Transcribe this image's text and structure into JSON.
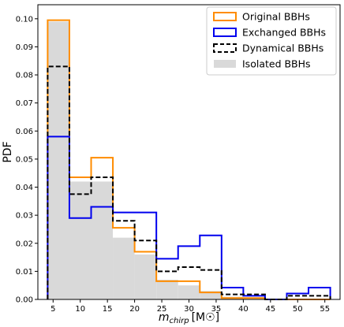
{
  "chart_data": {
    "type": "histogram",
    "xlabel_main": "m",
    "xlabel_sub": "chirp",
    "xlabel_unit": "[M☉]",
    "ylabel": "PDF",
    "xlim": [
      2.2,
      57.8
    ],
    "ylim": [
      0,
      0.105
    ],
    "xticks": [
      5,
      10,
      15,
      20,
      25,
      30,
      35,
      40,
      45,
      50,
      55
    ],
    "yticks": [
      0.0,
      0.01,
      0.02,
      0.03,
      0.04,
      0.05,
      0.06,
      0.07,
      0.08,
      0.09,
      0.1
    ],
    "ytick_labels": [
      "0.00",
      "0.01",
      "0.02",
      "0.03",
      "0.04",
      "0.05",
      "0.06",
      "0.07",
      "0.08",
      "0.09",
      "0.10"
    ],
    "bin_edges": [
      4,
      8,
      12,
      16,
      20,
      24,
      28,
      32,
      36,
      40,
      44,
      48,
      52,
      56
    ],
    "series": [
      {
        "name": "Isolated BBHs",
        "style": "filled",
        "color": "#d9d9d9",
        "values": [
          0.099,
          0.042,
          0.042,
          0.022,
          0.016,
          0.007,
          0.005,
          0.003,
          0.001,
          0.0,
          0.0,
          0.0,
          0.0
        ]
      },
      {
        "name": "Original BBHs",
        "style": "step",
        "color": "#ff8c00",
        "values": [
          0.0995,
          0.0435,
          0.0505,
          0.0255,
          0.017,
          0.0065,
          0.0065,
          0.0025,
          0.0005,
          0.0005,
          0.0,
          0.0,
          0.0
        ]
      },
      {
        "name": "Exchanged BBHs",
        "style": "step",
        "color": "#0000ee",
        "values": [
          0.058,
          0.029,
          0.033,
          0.031,
          0.031,
          0.0145,
          0.019,
          0.0228,
          0.0042,
          0.0013,
          0.0,
          0.0021,
          0.0042
        ]
      },
      {
        "name": "Dynamical BBHs",
        "style": "dashed",
        "color": "#000000",
        "values": [
          0.083,
          0.0375,
          0.0435,
          0.028,
          0.021,
          0.01,
          0.0115,
          0.0105,
          0.0018,
          0.0018,
          0.0,
          0.0013,
          0.0013
        ]
      }
    ],
    "legend": {
      "position": "top-right",
      "entries": [
        "Original BBHs",
        "Exchanged BBHs",
        "Dynamical BBHs",
        "Isolated BBHs"
      ]
    },
    "grid": false
  }
}
